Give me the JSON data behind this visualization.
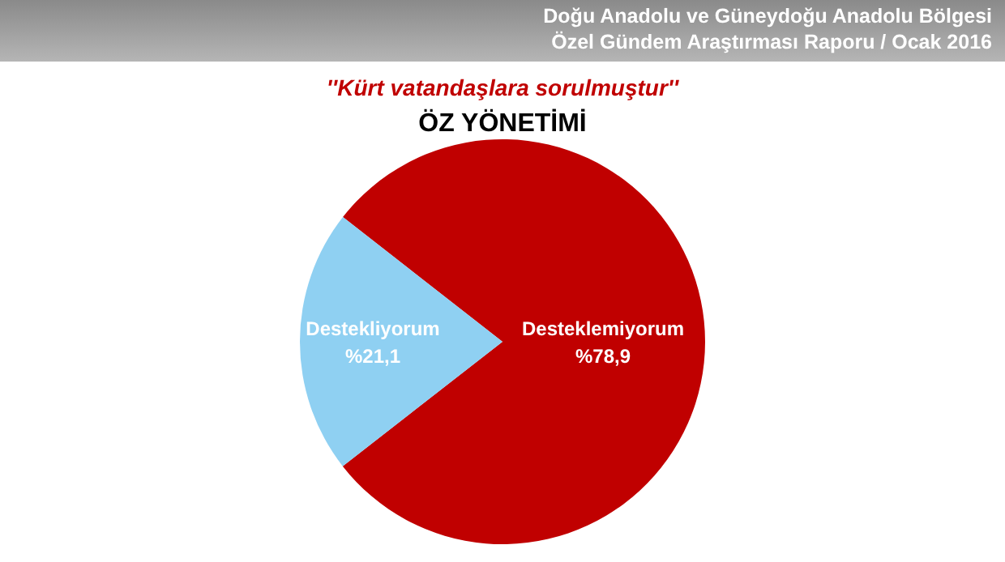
{
  "chart_data": {
    "type": "pie",
    "title": "ÖZ YÖNETİMİ",
    "subtitle": "''Kürt vatandaşlara sorulmuştur''",
    "annotations": [
      "Doğu Anadolu ve Güneydoğu Anadolu Bölgesi",
      "Özel Gündem Araştırması Raporu / Ocak 2016"
    ],
    "categories": [
      "Desteklemiyorum",
      "Destekliyorum"
    ],
    "values": [
      78.9,
      21.1
    ],
    "colors": [
      "#c00000",
      "#8fd0f2"
    ],
    "value_labels": [
      "%78,9",
      "%21,1"
    ],
    "legend": false
  }
}
